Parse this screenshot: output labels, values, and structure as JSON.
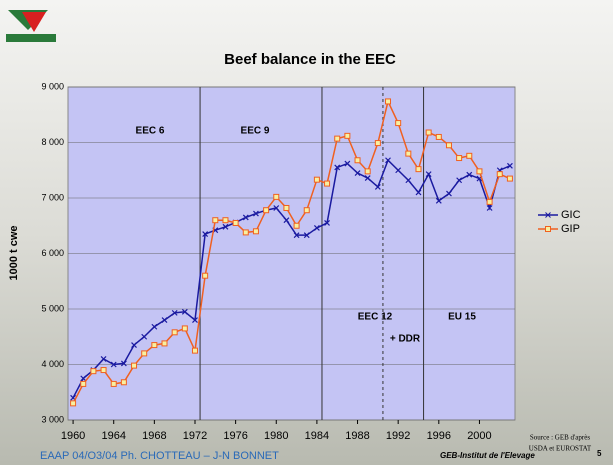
{
  "chart_data": {
    "type": "line",
    "title": "Beef balance in the EEC",
    "y_label": "1000 t cwe",
    "x": [
      1960,
      1961,
      1962,
      1963,
      1964,
      1965,
      1966,
      1967,
      1968,
      1969,
      1970,
      1971,
      1972,
      1973,
      1974,
      1975,
      1976,
      1977,
      1978,
      1979,
      1980,
      1981,
      1982,
      1983,
      1984,
      1985,
      1986,
      1987,
      1988,
      1989,
      1990,
      1991,
      1992,
      1993,
      1994,
      1995,
      1996,
      1997,
      1998,
      1999,
      2000,
      2001,
      2002,
      2003
    ],
    "series": [
      {
        "name": "GIC",
        "color": "#1a1aa0",
        "marker": "x",
        "values": [
          3400,
          3750,
          3900,
          4100,
          4000,
          4020,
          4350,
          4500,
          4680,
          4800,
          4930,
          4950,
          4800,
          6350,
          6420,
          6480,
          6560,
          6650,
          6720,
          6780,
          6820,
          6600,
          6330,
          6330,
          6460,
          6550,
          7550,
          7620,
          7450,
          7360,
          7200,
          7680,
          7500,
          7320,
          7100,
          7430,
          6950,
          7080,
          7320,
          7420,
          7350,
          6820,
          7500,
          7580
        ]
      },
      {
        "name": "GIP",
        "color": "#f06020",
        "marker": "square",
        "values": [
          3300,
          3650,
          3880,
          3900,
          3650,
          3680,
          3980,
          4200,
          4350,
          4380,
          4580,
          4650,
          4250,
          5600,
          6600,
          6600,
          6550,
          6380,
          6400,
          6780,
          7020,
          6820,
          6500,
          6780,
          7330,
          7260,
          8070,
          8120,
          7680,
          7480,
          7990,
          8740,
          8350,
          7800,
          7520,
          8180,
          8100,
          7950,
          7720,
          7760,
          7480,
          6930,
          7430,
          7350
        ]
      }
    ],
    "xlim": [
      1959.5,
      2003.5
    ],
    "xticks": [
      1960,
      1964,
      1968,
      1972,
      1976,
      1980,
      1984,
      1988,
      1992,
      1996,
      2000
    ],
    "ylim": [
      3000,
      9000
    ],
    "yticks": [
      {
        "value": 3000,
        "label": "3 000"
      },
      {
        "value": 4000,
        "label": "4 000"
      },
      {
        "value": 5000,
        "label": "5 000"
      },
      {
        "value": 6000,
        "label": "6 000"
      },
      {
        "value": 7000,
        "label": "7 000"
      },
      {
        "value": 8000,
        "label": "8 000"
      },
      {
        "value": 9000,
        "label": "9 000"
      }
    ],
    "grid": true,
    "legend": "right",
    "dividers": [
      {
        "x": 1972.5,
        "style": "solid"
      },
      {
        "x": 1984.5,
        "style": "solid"
      },
      {
        "x": 1990.5,
        "style": "dashed"
      },
      {
        "x": 1994.5,
        "style": "solid"
      }
    ],
    "periods": [
      "EEC 6",
      "EEC 9",
      "EEC 12",
      "+ DDR",
      "EU 15"
    ],
    "source": [
      "Source : GEB d'après",
      "USDA et EUROSTAT"
    ],
    "footer_left": "EAAP  04/O3/04 Ph. CHOTTEAU – J-N BONNET",
    "footer_right": "GEB-Institut de l'Elevage",
    "page": "5"
  }
}
